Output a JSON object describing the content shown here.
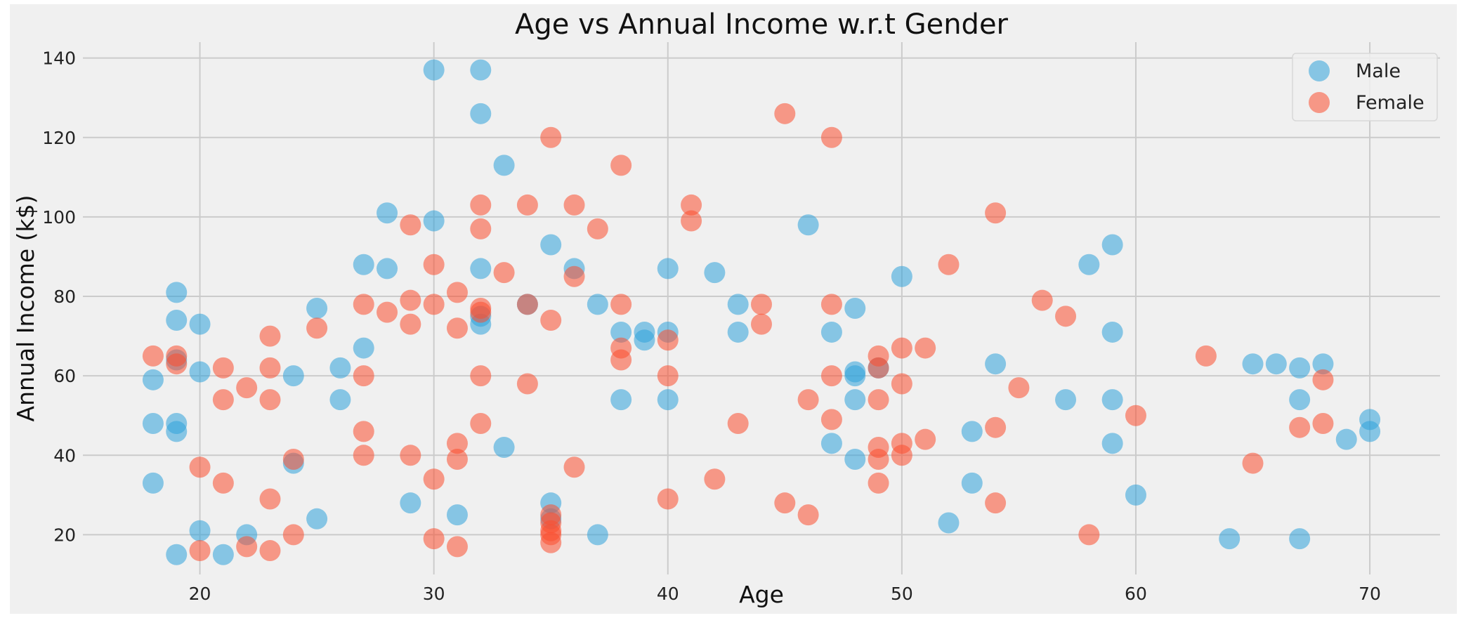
{
  "chart_data": {
    "type": "scatter",
    "title": "Age vs Annual Income w.r.t Gender",
    "xlabel": "Age",
    "ylabel": "Annual Income (k$)",
    "xlim": [
      15,
      73
    ],
    "ylim": [
      10,
      144
    ],
    "xticks": [
      20,
      30,
      40,
      50,
      60,
      70
    ],
    "yticks": [
      20,
      40,
      60,
      80,
      100,
      120,
      140
    ],
    "grid": true,
    "legend_position": "top-right",
    "colors": {
      "background": "#f0f0f0",
      "grid": "#cbcbcb",
      "male": "#30a2da",
      "female": "#fc4f30"
    },
    "series": [
      {
        "name": "Male",
        "x": [
          18,
          18,
          18,
          19,
          19,
          19,
          19,
          19,
          19,
          20,
          20,
          20,
          21,
          22,
          24,
          24,
          25,
          25,
          26,
          26,
          27,
          27,
          28,
          28,
          29,
          30,
          30,
          31,
          32,
          32,
          32,
          32,
          32,
          33,
          33,
          34,
          35,
          35,
          35,
          36,
          37,
          37,
          38,
          38,
          39,
          39,
          40,
          40,
          40,
          42,
          43,
          43,
          46,
          47,
          47,
          48,
          48,
          48,
          48,
          48,
          49,
          50,
          52,
          53,
          53,
          54,
          57,
          58,
          59,
          59,
          59,
          59,
          60,
          64,
          65,
          66,
          67,
          67,
          67,
          68,
          69,
          70,
          70
        ],
        "y": [
          59,
          48,
          33,
          81,
          74,
          64,
          48,
          46,
          15,
          73,
          61,
          21,
          15,
          20,
          60,
          38,
          77,
          24,
          62,
          54,
          88,
          67,
          101,
          87,
          28,
          137,
          99,
          25,
          137,
          126,
          87,
          75,
          73,
          113,
          42,
          78,
          93,
          28,
          24,
          87,
          78,
          20,
          71,
          54,
          71,
          69,
          87,
          71,
          54,
          86,
          78,
          71,
          98,
          71,
          43,
          77,
          61,
          60,
          54,
          39,
          62,
          85,
          23,
          46,
          33,
          63,
          54,
          88,
          93,
          71,
          54,
          43,
          30,
          19,
          63,
          63,
          62,
          54,
          19,
          63,
          44,
          49,
          46
        ]
      },
      {
        "name": "Female",
        "x": [
          18,
          19,
          19,
          20,
          20,
          21,
          21,
          21,
          22,
          22,
          23,
          23,
          23,
          23,
          23,
          24,
          24,
          25,
          27,
          27,
          27,
          27,
          28,
          29,
          29,
          29,
          29,
          30,
          30,
          30,
          30,
          31,
          31,
          31,
          31,
          31,
          32,
          32,
          32,
          32,
          32,
          32,
          33,
          34,
          34,
          34,
          35,
          35,
          35,
          35,
          35,
          35,
          35,
          36,
          36,
          36,
          37,
          38,
          38,
          38,
          38,
          40,
          40,
          40,
          41,
          41,
          42,
          43,
          44,
          44,
          45,
          45,
          46,
          46,
          47,
          47,
          47,
          47,
          49,
          49,
          49,
          49,
          49,
          49,
          50,
          50,
          50,
          50,
          51,
          51,
          52,
          54,
          54,
          54,
          55,
          56,
          57,
          58,
          60,
          63,
          65,
          67,
          68,
          68
        ],
        "y": [
          65,
          65,
          63,
          37,
          16,
          62,
          54,
          33,
          57,
          17,
          70,
          62,
          54,
          29,
          16,
          39,
          20,
          72,
          78,
          60,
          46,
          40,
          76,
          98,
          79,
          73,
          40,
          88,
          78,
          34,
          19,
          81,
          72,
          43,
          39,
          17,
          103,
          97,
          76,
          60,
          48,
          77,
          86,
          103,
          78,
          58,
          120,
          74,
          23,
          21,
          20,
          18,
          25,
          103,
          85,
          37,
          97,
          113,
          78,
          67,
          64,
          69,
          60,
          29,
          103,
          99,
          34,
          48,
          78,
          73,
          126,
          28,
          54,
          25,
          120,
          78,
          60,
          49,
          65,
          62,
          54,
          42,
          39,
          33,
          67,
          58,
          43,
          40,
          67,
          44,
          88,
          101,
          47,
          28,
          57,
          79,
          75,
          20,
          50,
          65,
          38,
          47,
          59,
          48
        ]
      }
    ]
  }
}
